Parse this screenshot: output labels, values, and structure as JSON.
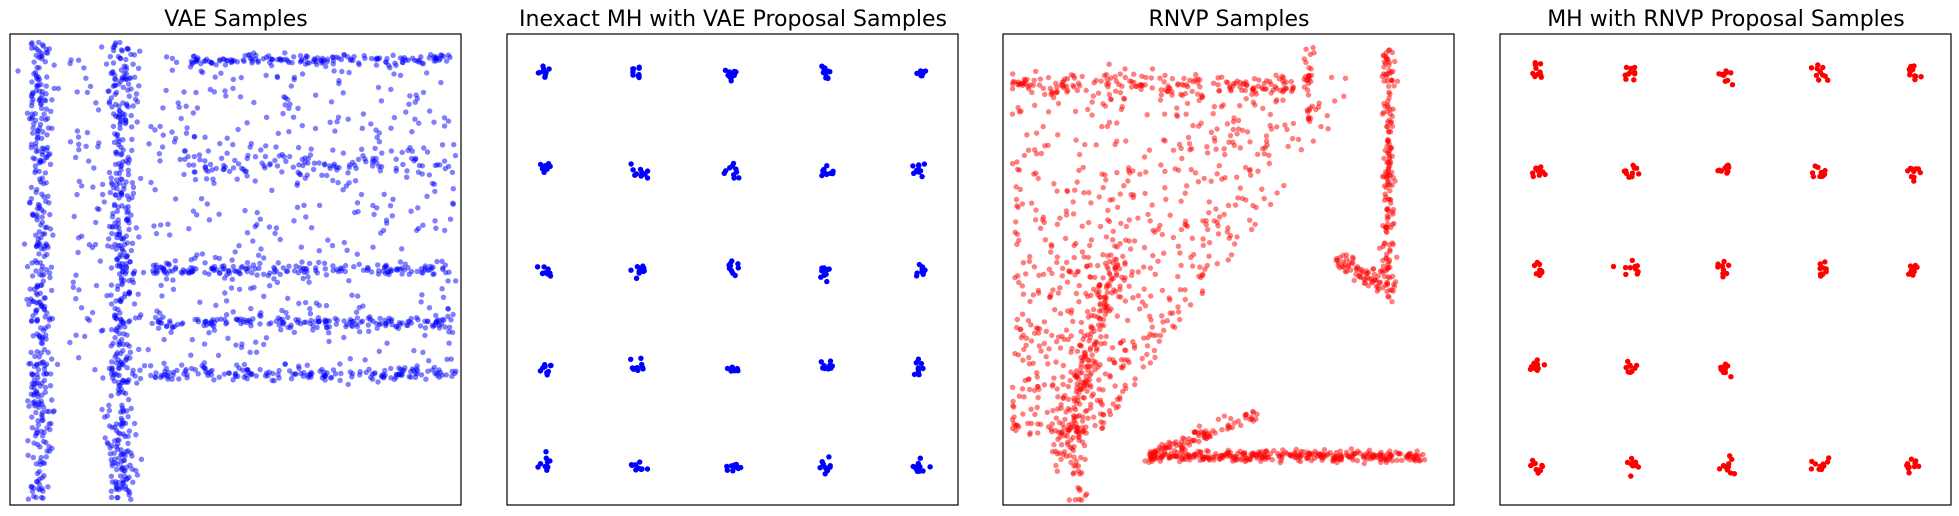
{
  "chart_data": [
    {
      "type": "scatter",
      "title": "VAE Samples",
      "color": "#0000ff",
      "point_alpha": 0.5,
      "series": [
        {
          "pattern": "diffuse",
          "clusters": [
            {
              "kind": "vband",
              "x": -3.95,
              "y0": -4.4,
              "y1": 4.35,
              "sd": 0.07,
              "n": 380
            },
            {
              "kind": "vband",
              "x": -3.0,
              "y0": -4.4,
              "y1": 4.35,
              "sd": 0.09,
              "n": 420
            },
            {
              "kind": "hband",
              "y": 4.0,
              "x0": -2.2,
              "x1": 0.9,
              "sd": 0.05,
              "n": 140
            },
            {
              "kind": "hband",
              "y": 2.0,
              "x0": -2.3,
              "x1": 0.85,
              "sd": 0.14,
              "n": 110
            },
            {
              "kind": "hband",
              "y": 0.0,
              "x0": -2.7,
              "x1": 0.9,
              "sd": 0.06,
              "n": 160
            },
            {
              "kind": "hband",
              "y": -1.0,
              "x0": -2.6,
              "x1": 0.9,
              "sd": 0.07,
              "n": 150
            },
            {
              "kind": "hband",
              "y": -2.0,
              "x0": -2.6,
              "x1": 0.95,
              "sd": 0.07,
              "n": 150
            },
            {
              "kind": "region",
              "x0": -3.6,
              "x1": 0.95,
              "y0": -2.1,
              "y1": 4.1,
              "n": 520
            }
          ]
        }
      ],
      "xlim": [
        -4.3,
        1.0
      ],
      "ylim": [
        -4.5,
        4.5
      ]
    },
    {
      "type": "scatter",
      "title": "Inexact MH with VAE Proposal Samples",
      "color": "#0000ff",
      "point_alpha": 1.0,
      "series": [
        {
          "pattern": "grid",
          "x": [
            -2,
            -1,
            0,
            1,
            2
          ],
          "y": [
            -2,
            -1,
            0,
            1,
            2
          ],
          "spread": 0.04,
          "per_cluster": 10
        }
      ],
      "xlim": [
        -2.4,
        2.4
      ],
      "ylim": [
        -2.4,
        2.4
      ]
    },
    {
      "type": "scatter",
      "title": "RNVP Samples",
      "color": "#ff0000",
      "point_alpha": 0.5,
      "series": [
        {
          "pattern": "diffuse",
          "clusters": [
            {
              "kind": "hband",
              "y": 2.0,
              "x0": -2.3,
              "x1": 0.7,
              "sd": 0.07,
              "n": 170
            },
            {
              "kind": "hband",
              "y": -2.02,
              "x0": -0.85,
              "x1": 2.1,
              "sd": 0.03,
              "n": 320
            },
            {
              "kind": "vband",
              "x": 1.7,
              "y0": -0.3,
              "y1": 2.4,
              "sd": 0.04,
              "n": 170
            },
            {
              "kind": "vband",
              "x": 0.85,
              "y0": 1.6,
              "y1": 2.5,
              "sd": 0.02,
              "n": 30
            },
            {
              "kind": "vband",
              "x": -1.6,
              "y0": -2.5,
              "y1": -1.7,
              "sd": 0.04,
              "n": 35
            },
            {
              "kind": "wedge",
              "n": 700
            },
            {
              "kind": "streak",
              "x0": -1.8,
              "y0": -2.1,
              "x1": -1.2,
              "y1": 0.2,
              "sd": 0.07,
              "n": 180
            },
            {
              "kind": "streak",
              "x0": -0.85,
              "y0": -2.02,
              "x1": 0.3,
              "y1": -1.55,
              "sd": 0.05,
              "n": 90
            },
            {
              "kind": "streak",
              "x0": 1.2,
              "y0": 0.1,
              "x1": 1.7,
              "y1": -0.2,
              "sd": 0.06,
              "n": 70
            }
          ]
        }
      ],
      "xlim": [
        -2.4,
        2.4
      ],
      "ylim": [
        -2.55,
        2.55
      ]
    },
    {
      "type": "scatter",
      "title": "MH with RNVP Proposal Samples",
      "color": "#ff0000",
      "point_alpha": 1.0,
      "series": [
        {
          "pattern": "grid",
          "x": [
            -2,
            -1,
            0,
            1,
            2
          ],
          "y": [
            -2,
            -1,
            0,
            1,
            2
          ],
          "spread": 0.04,
          "per_cluster": 10,
          "missing": [
            [
              1,
              -1
            ],
            [
              2,
              -1
            ]
          ]
        }
      ],
      "xlim": [
        -2.4,
        2.4
      ],
      "ylim": [
        -2.4,
        2.4
      ]
    }
  ]
}
